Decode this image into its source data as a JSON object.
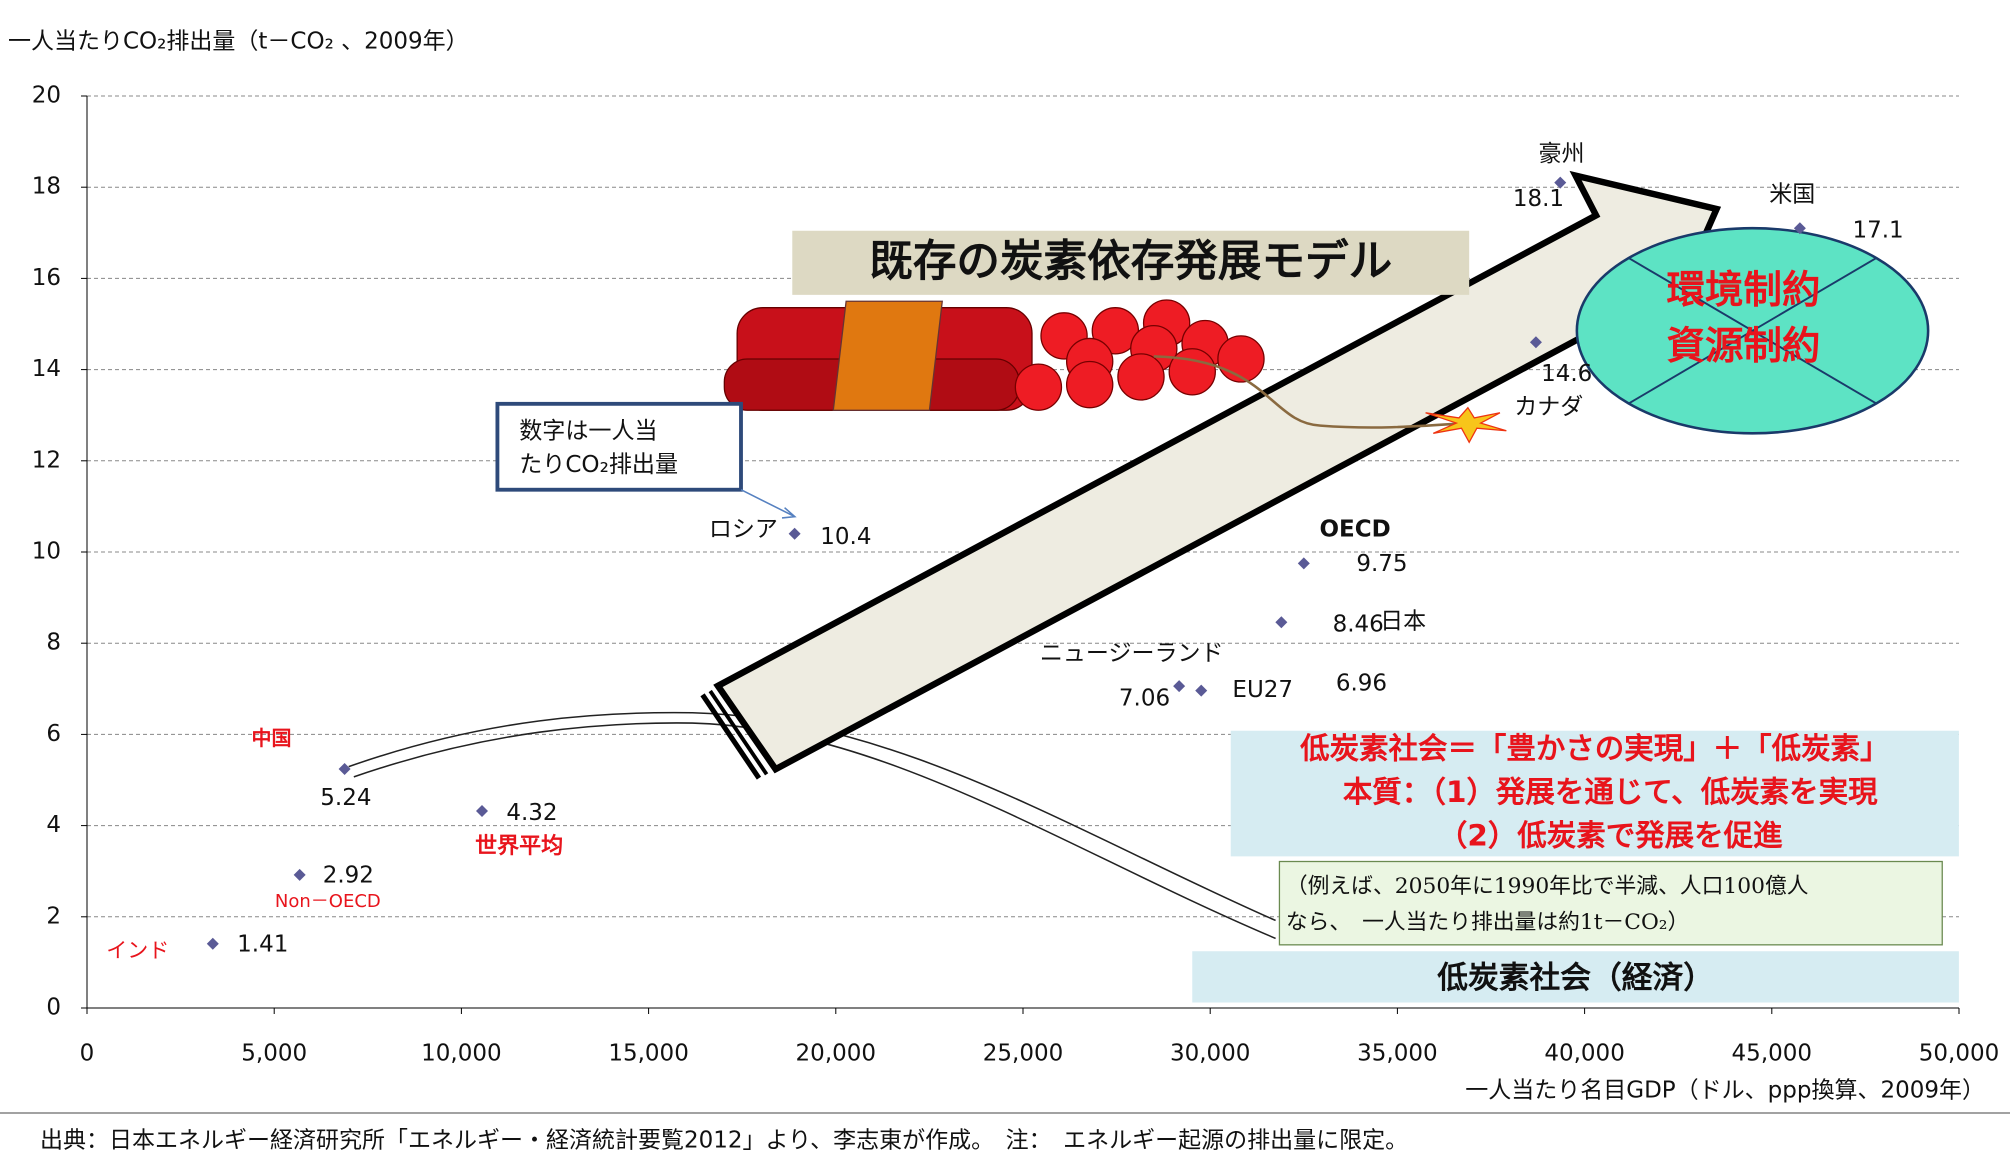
{
  "chart_data": {
    "type": "scatter",
    "title": "一人当たりCO₂排出量（t－CO₂ 、2009年）",
    "x_label": "一人当たり名目GDP（ドル、ppp換算、2009年）",
    "source": "出典：日本エネルギー経済研究所「エネルギー・経済統計要覧2012」より、李志東が作成。　注：　エネルギー起源の排出量に限定。",
    "color": "#5a5a96",
    "grid": true,
    "xlim": [
      0,
      50000
    ],
    "xticks": [
      0,
      {
        "value": 5000,
        "label": "5,000"
      },
      {
        "value": 10000,
        "label": "10,000"
      },
      {
        "value": 15000,
        "label": "15,000"
      },
      {
        "value": 20000,
        "label": "20,000"
      },
      {
        "value": 25000,
        "label": "25,000"
      },
      {
        "value": 30000,
        "label": "30,000"
      },
      {
        "value": 35000,
        "label": "35,000"
      },
      {
        "value": 40000,
        "label": "40,000"
      },
      {
        "value": 45000,
        "label": "45,000"
      },
      {
        "value": 50000,
        "label": "50,000"
      }
    ],
    "ylim": [
      0,
      20
    ],
    "yticks": [
      0,
      2,
      4,
      6,
      8,
      10,
      12,
      14,
      16,
      18,
      20
    ],
    "points": [
      {
        "name": "インド",
        "x": 3360,
        "y": 1.41,
        "label_color": "#e8141c"
      },
      {
        "name": "Non－OECD",
        "x": 5680,
        "y": 2.92,
        "label_color": "#e8141c"
      },
      {
        "name": "中国",
        "x": 6880,
        "y": 5.24,
        "label_color": "#e8141c"
      },
      {
        "name": "世界平均",
        "x": 10550,
        "y": 4.32,
        "label_color": "#e8141c"
      },
      {
        "name": "ロシア",
        "x": 18900,
        "y": 10.4,
        "label_color": "#111111"
      },
      {
        "name": "ニュージーランド",
        "x": 29170,
        "y": 7.06,
        "label_color": "#111111"
      },
      {
        "name": "EU27",
        "x": 29760,
        "y": 6.96,
        "label_color": "#111111"
      },
      {
        "name": "日本",
        "x": 31900,
        "y": 8.46,
        "label_color": "#111111"
      },
      {
        "name": "OECD",
        "x": 32500,
        "y": 9.75,
        "label_color": "#111111"
      },
      {
        "name": "カナダ",
        "x": 38700,
        "y": 14.6,
        "label_color": "#111111"
      },
      {
        "name": "豪州",
        "x": 39350,
        "y": 18.1,
        "label_color": "#111111"
      },
      {
        "name": "米国",
        "x": 45750,
        "y": 17.1,
        "label_color": "#111111"
      }
    ],
    "annotations": {
      "model": "既存の炭素依存発展モデル",
      "constraint_1": "環境制約",
      "constraint_2": "資源制約",
      "legend_note": [
        "数字は一人当",
        "たりCO₂排出量"
      ],
      "summary": [
        "低炭素社会＝「豊かさの実現」＋「低炭素」",
        "本質：（1）発展を通じて、低炭素を実現",
        "（2）低炭素で発展を促進"
      ],
      "example": [
        "（例えば、2050年に1990年比で半減、人口100億人",
        "なら、　一人当たり排出量は約1t－CO₂）"
      ],
      "goal": "低炭素社会（経済）"
    }
  }
}
